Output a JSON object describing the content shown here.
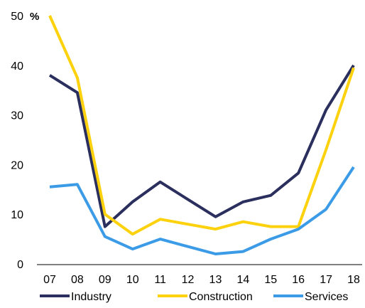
{
  "chart_data": {
    "type": "line",
    "title": "",
    "xlabel": "",
    "ylabel": "",
    "unit_label": "%",
    "categories": [
      "07",
      "08",
      "09",
      "10",
      "11",
      "12",
      "13",
      "14",
      "15",
      "16",
      "17",
      "18"
    ],
    "ylim": [
      0,
      50
    ],
    "yticks": [
      0,
      10,
      20,
      30,
      40,
      50
    ],
    "grid": false,
    "legend_position": "bottom",
    "series": [
      {
        "name": "Industry",
        "color": "#2a2f5e",
        "values": [
          38,
          34.5,
          7.5,
          12.5,
          16.5,
          13,
          9.5,
          12.5,
          13.8,
          18.3,
          31,
          40
        ]
      },
      {
        "name": "Construction",
        "color": "#fcd20e",
        "values": [
          50,
          37.5,
          10,
          6,
          9,
          8,
          7,
          8.5,
          7.5,
          7.5,
          23,
          39.5
        ]
      },
      {
        "name": "Services",
        "color": "#3b9be6",
        "values": [
          15.5,
          16,
          5.5,
          3,
          5,
          3.5,
          2,
          2.5,
          5,
          7,
          11,
          19.5
        ]
      }
    ]
  }
}
